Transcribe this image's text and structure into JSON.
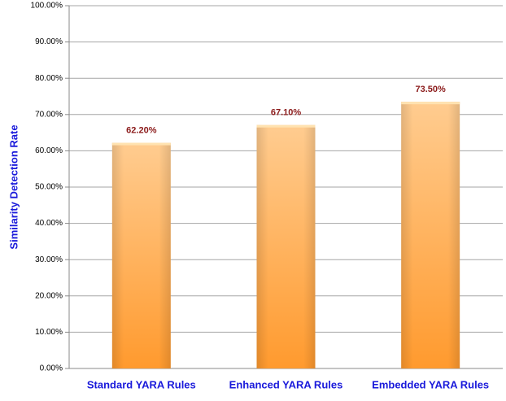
{
  "chart_data": {
    "type": "bar",
    "ylabel": "Similarity Detection Rate",
    "categories": [
      "Standard YARA Rules",
      "Enhanced YARA Rules",
      "Embedded YARA Rules"
    ],
    "values": [
      62.2,
      67.1,
      73.5
    ],
    "value_labels": [
      "62.20%",
      "67.10%",
      "73.50%"
    ],
    "color": "#ff9a2e",
    "ylim": [
      0,
      100
    ],
    "yticks": [
      {
        "value": 0,
        "label": "0.00%"
      },
      {
        "value": 10,
        "label": "10.00%"
      },
      {
        "value": 20,
        "label": "20.00%"
      },
      {
        "value": 30,
        "label": "30.00%"
      },
      {
        "value": 40,
        "label": "40.00%"
      },
      {
        "value": 50,
        "label": "50.00%"
      },
      {
        "value": 60,
        "label": "60.00%"
      },
      {
        "value": 70,
        "label": "70.00%"
      },
      {
        "value": 80,
        "label": "80.00%"
      },
      {
        "value": 90,
        "label": "90.00%"
      },
      {
        "value": 100,
        "label": "100.00%"
      }
    ],
    "grid": true
  }
}
